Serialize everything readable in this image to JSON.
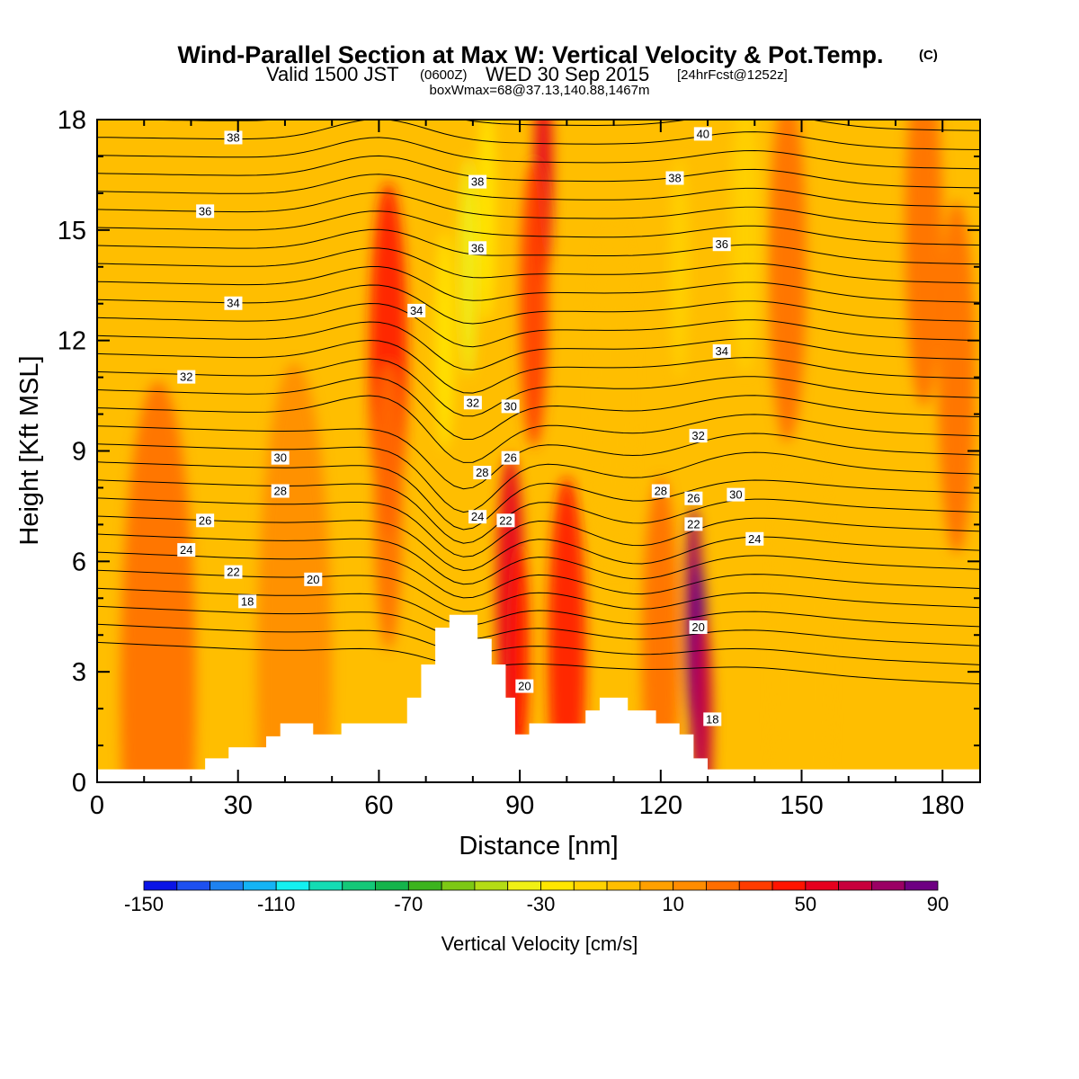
{
  "title": {
    "main": "Wind-Parallel Section at Max W: Vertical Velocity & Pot.Temp.",
    "copyright": "(C)",
    "valid_prefix": "Valid 1500 JST",
    "valid_z": "(0600Z)",
    "valid_date": "WED 30 Sep 2015",
    "forecast": "[24hrFcst@1252z]",
    "info": "boxWmax=68@37.13,140.88,1467m"
  },
  "chart_data": {
    "type": "heatmap",
    "xlabel": "Distance [nm]",
    "ylabel": "Height [Kft MSL]",
    "xlim": [
      0,
      188
    ],
    "ylim": [
      0,
      18
    ],
    "x_ticks": [
      "0",
      "30",
      "60",
      "90",
      "120",
      "150",
      "180"
    ],
    "y_ticks": [
      "0",
      "3",
      "6",
      "9",
      "12",
      "15",
      "18"
    ],
    "colorbar": {
      "label": "Vertical Velocity [cm/s]",
      "tick_labels": [
        "-150",
        "-110",
        "-70",
        "-30",
        "10",
        "50",
        "90"
      ],
      "bin_edges": [
        -150,
        90
      ],
      "colors": [
        "#0a14e6",
        "#1e50f0",
        "#1e82f0",
        "#14b4f5",
        "#14f0f0",
        "#14dcb4",
        "#14c878",
        "#14b44b",
        "#3cb41e",
        "#7dc814",
        "#b4dc14",
        "#f0f014",
        "#ffe600",
        "#ffd200",
        "#ffbe00",
        "#ffa000",
        "#ff8c00",
        "#ff6e00",
        "#ff3c00",
        "#ff1400",
        "#e6001e",
        "#c8003c",
        "#9b0064",
        "#6e0082"
      ]
    },
    "terrain_nm_kft": [
      [
        0,
        0.35
      ],
      [
        23,
        0.35
      ],
      [
        23,
        0.65
      ],
      [
        28,
        0.65
      ],
      [
        28,
        0.95
      ],
      [
        36,
        0.95
      ],
      [
        36,
        1.25
      ],
      [
        39,
        1.25
      ],
      [
        39,
        1.6
      ],
      [
        46,
        1.6
      ],
      [
        46,
        1.3
      ],
      [
        52,
        1.3
      ],
      [
        52,
        1.6
      ],
      [
        66,
        1.6
      ],
      [
        66,
        2.3
      ],
      [
        69,
        2.3
      ],
      [
        69,
        3.2
      ],
      [
        72,
        3.2
      ],
      [
        72,
        4.2
      ],
      [
        75,
        4.2
      ],
      [
        75,
        4.55
      ],
      [
        81,
        4.55
      ],
      [
        81,
        3.9
      ],
      [
        84,
        3.9
      ],
      [
        84,
        3.2
      ],
      [
        87,
        3.2
      ],
      [
        87,
        2.3
      ],
      [
        89,
        2.3
      ],
      [
        89,
        1.3
      ],
      [
        92,
        1.3
      ],
      [
        92,
        1.6
      ],
      [
        104,
        1.6
      ],
      [
        104,
        1.95
      ],
      [
        107,
        1.95
      ],
      [
        107,
        2.3
      ],
      [
        113,
        2.3
      ],
      [
        113,
        1.95
      ],
      [
        119,
        1.95
      ],
      [
        119,
        1.6
      ],
      [
        124,
        1.6
      ],
      [
        124,
        1.3
      ],
      [
        127,
        1.3
      ],
      [
        127,
        0.65
      ],
      [
        130,
        0.65
      ],
      [
        130,
        0.35
      ],
      [
        188,
        0.35
      ]
    ],
    "velocity_features": [
      {
        "x": 62,
        "y": 11.5,
        "w": 4,
        "value": 40
      },
      {
        "x": 62,
        "y": 7.5,
        "w": 3,
        "value": 25
      },
      {
        "x": 79,
        "y": 14.0,
        "w": 2,
        "value": -40
      },
      {
        "x": 74,
        "y": 12.0,
        "w": 2,
        "value": -30
      },
      {
        "x": 83,
        "y": 15.5,
        "w": 2,
        "value": -30
      },
      {
        "x": 95,
        "y": 16.5,
        "w": 2,
        "value": 50
      },
      {
        "x": 93,
        "y": 13.0,
        "w": 3,
        "value": 30
      },
      {
        "x": 88,
        "y": 5.0,
        "w": 3,
        "value": 50
      },
      {
        "x": 90,
        "y": 3.5,
        "w": 2,
        "value": 45
      },
      {
        "x": 100,
        "y": 3.5,
        "w": 4,
        "value": 40
      },
      {
        "x": 127,
        "y": 4.5,
        "w": 2,
        "value": 70
      },
      {
        "x": 128,
        "y": 3.0,
        "w": 2,
        "value": 85
      },
      {
        "x": 129,
        "y": 1.5,
        "w": 2,
        "value": 60
      },
      {
        "x": 124,
        "y": 14.0,
        "w": 2,
        "value": -20
      },
      {
        "x": 138,
        "y": 15.0,
        "w": 3,
        "value": -15
      },
      {
        "x": 147,
        "y": 14.0,
        "w": 4,
        "value": 20
      },
      {
        "x": 176,
        "y": 15.0,
        "w": 4,
        "value": 20
      },
      {
        "x": 13,
        "y": 2.5,
        "w": 8,
        "value": 20
      },
      {
        "x": 42,
        "y": 3.0,
        "w": 8,
        "value": 15
      },
      {
        "x": 120,
        "y": 3.5,
        "w": 4,
        "value": 25
      },
      {
        "x": 150,
        "y": 3.0,
        "w": 6,
        "value": -10
      },
      {
        "x": 183,
        "y": 11.0,
        "w": 4,
        "value": 20
      },
      {
        "x": 110,
        "y": 10.5,
        "w": 4,
        "value": -10
      }
    ],
    "contour_labels": [
      {
        "text": "38",
        "x": 29,
        "y": 17.5
      },
      {
        "text": "36",
        "x": 23,
        "y": 15.5
      },
      {
        "text": "34",
        "x": 29,
        "y": 13.0
      },
      {
        "text": "32",
        "x": 19,
        "y": 11.0
      },
      {
        "text": "30",
        "x": 39,
        "y": 8.8
      },
      {
        "text": "28",
        "x": 39,
        "y": 7.9
      },
      {
        "text": "26",
        "x": 23,
        "y": 7.1
      },
      {
        "text": "24",
        "x": 19,
        "y": 6.3
      },
      {
        "text": "22",
        "x": 29,
        "y": 5.7
      },
      {
        "text": "20",
        "x": 46,
        "y": 5.5
      },
      {
        "text": "18",
        "x": 32,
        "y": 4.9
      },
      {
        "text": "34",
        "x": 68,
        "y": 12.8
      },
      {
        "text": "38",
        "x": 81,
        "y": 16.3
      },
      {
        "text": "36",
        "x": 81,
        "y": 14.5
      },
      {
        "text": "32",
        "x": 80,
        "y": 10.3
      },
      {
        "text": "30",
        "x": 88,
        "y": 10.2
      },
      {
        "text": "28",
        "x": 82,
        "y": 8.4
      },
      {
        "text": "26",
        "x": 88,
        "y": 8.8
      },
      {
        "text": "24",
        "x": 81,
        "y": 7.2
      },
      {
        "text": "22",
        "x": 87,
        "y": 7.1
      },
      {
        "text": "40",
        "x": 129,
        "y": 17.6
      },
      {
        "text": "38",
        "x": 123,
        "y": 16.4
      },
      {
        "text": "36",
        "x": 133,
        "y": 14.6
      },
      {
        "text": "34",
        "x": 133,
        "y": 11.7
      },
      {
        "text": "32",
        "x": 128,
        "y": 9.4
      },
      {
        "text": "28",
        "x": 120,
        "y": 7.9
      },
      {
        "text": "26",
        "x": 127,
        "y": 7.7
      },
      {
        "text": "30",
        "x": 136,
        "y": 7.8
      },
      {
        "text": "22",
        "x": 127,
        "y": 7.0
      },
      {
        "text": "24",
        "x": 140,
        "y": 6.6
      },
      {
        "text": "20",
        "x": 128,
        "y": 4.2
      },
      {
        "text": "20",
        "x": 91,
        "y": 2.6
      },
      {
        "text": "18",
        "x": 131,
        "y": 1.7
      }
    ]
  }
}
